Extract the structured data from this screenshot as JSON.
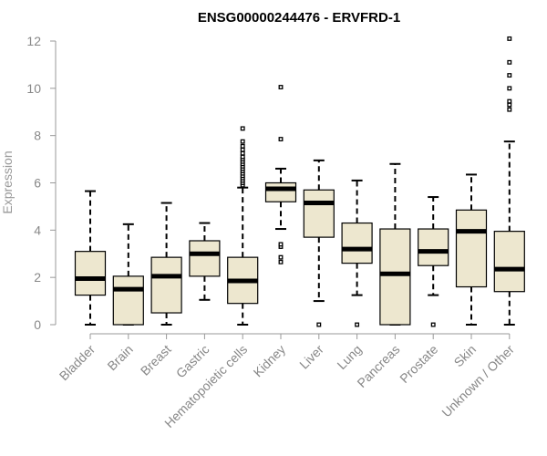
{
  "chart_data": {
    "type": "boxplot",
    "title": "ENSG00000244476 - ERVFRD-1",
    "ylabel": "Expression",
    "xlabel": "",
    "ylim": [
      0,
      12
    ],
    "yticks": [
      0,
      2,
      4,
      6,
      8,
      10,
      12
    ],
    "box_color": "#ede7cf",
    "categories": [
      "Bladder",
      "Brain",
      "Breast",
      "Gastric",
      "Hematopoietic cells",
      "Kidney",
      "Liver",
      "Lung",
      "Pancreas",
      "Prostate",
      "Skin",
      "Unknown / Other"
    ],
    "series": [
      {
        "min": 0.0,
        "q1": 1.25,
        "median": 1.95,
        "q3": 3.1,
        "max": 5.65,
        "outliers": []
      },
      {
        "min": 0.0,
        "q1": 0.0,
        "median": 1.5,
        "q3": 2.05,
        "max": 4.25,
        "outliers": []
      },
      {
        "min": 0.0,
        "q1": 0.5,
        "median": 2.05,
        "q3": 2.85,
        "max": 5.15,
        "outliers": []
      },
      {
        "min": 1.05,
        "q1": 2.05,
        "median": 3.0,
        "q3": 3.55,
        "max": 4.3,
        "outliers": []
      },
      {
        "min": 0.0,
        "q1": 0.9,
        "median": 1.85,
        "q3": 2.85,
        "max": 5.8,
        "outliers": [
          5.9,
          6.0,
          6.1,
          6.2,
          6.3,
          6.4,
          6.5,
          6.6,
          6.7,
          6.8,
          6.9,
          7.0,
          7.1,
          7.25,
          7.4,
          7.55,
          7.75,
          8.3
        ]
      },
      {
        "min": 4.05,
        "q1": 5.2,
        "median": 5.75,
        "q3": 6.0,
        "max": 6.6,
        "outliers": [
          2.65,
          2.85,
          3.3,
          3.4,
          7.85,
          10.05
        ]
      },
      {
        "min": 1.0,
        "q1": 3.7,
        "median": 5.15,
        "q3": 5.7,
        "max": 6.95,
        "outliers": [
          0.0
        ]
      },
      {
        "min": 1.25,
        "q1": 2.6,
        "median": 3.2,
        "q3": 4.3,
        "max": 6.1,
        "outliers": [
          0.0
        ]
      },
      {
        "min": 0.0,
        "q1": 0.0,
        "median": 2.15,
        "q3": 4.05,
        "max": 6.8,
        "outliers": []
      },
      {
        "min": 1.25,
        "q1": 2.5,
        "median": 3.1,
        "q3": 4.05,
        "max": 5.4,
        "outliers": [
          0.0
        ]
      },
      {
        "min": 0.0,
        "q1": 1.6,
        "median": 3.95,
        "q3": 4.85,
        "max": 6.35,
        "outliers": []
      },
      {
        "min": 0.0,
        "q1": 1.4,
        "median": 2.35,
        "q3": 3.95,
        "max": 7.75,
        "outliers": [
          9.1,
          9.3,
          9.45,
          10.0,
          10.55,
          11.1,
          12.1
        ]
      }
    ]
  }
}
